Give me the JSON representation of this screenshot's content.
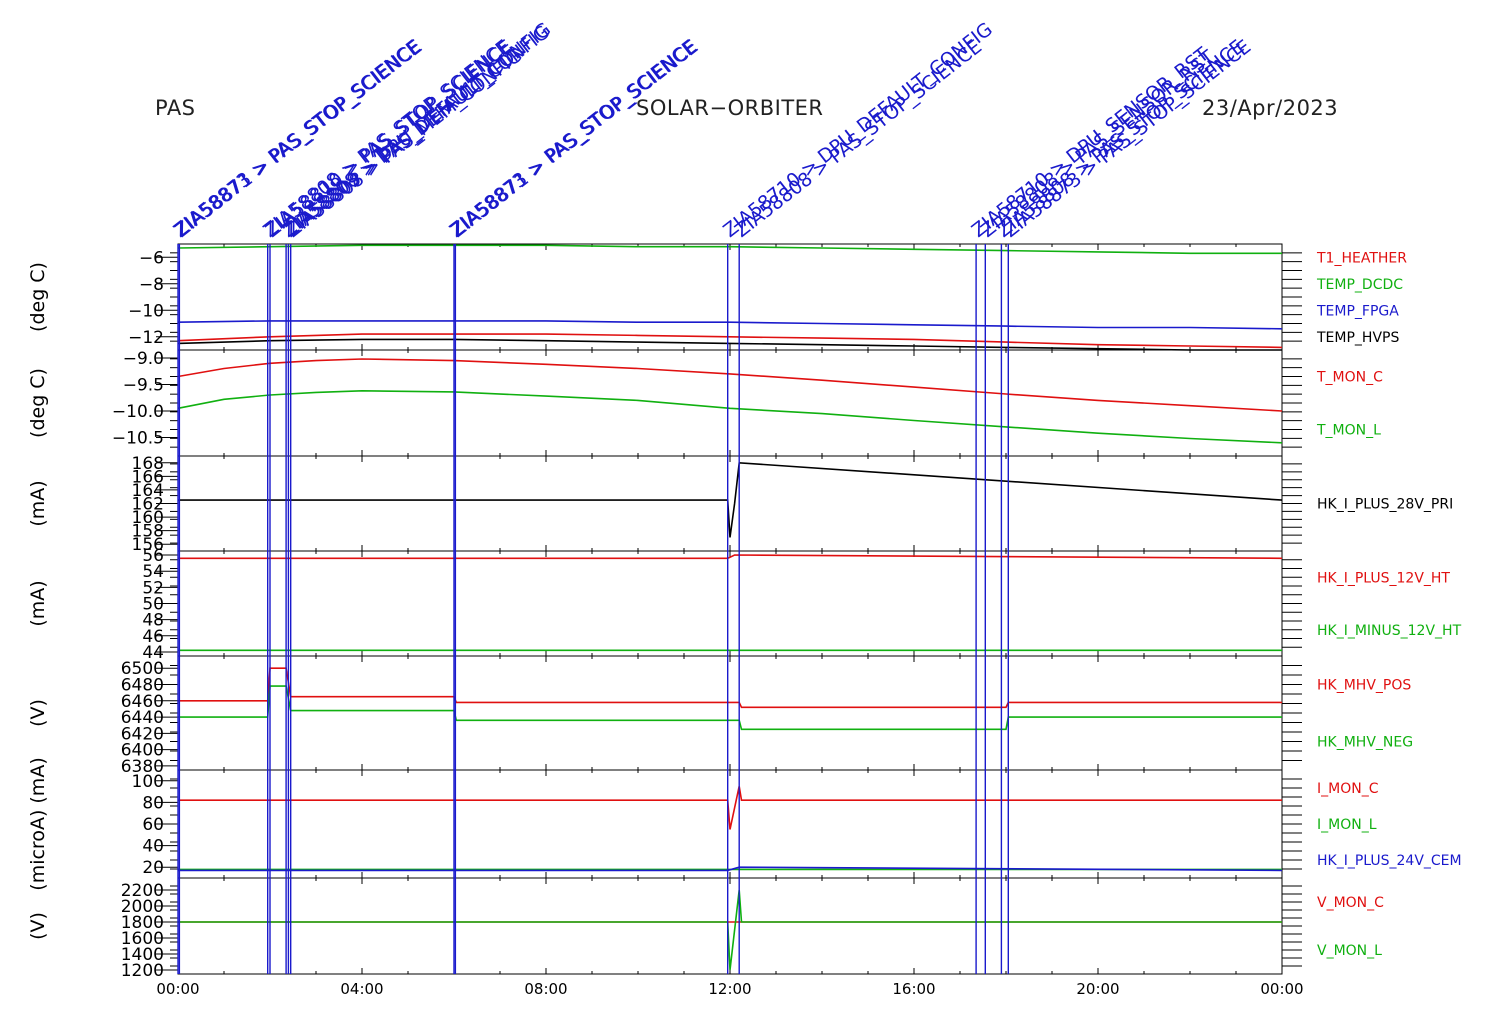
{
  "header": {
    "instrument": "PAS",
    "mission": "SOLAR−ORBITER",
    "date": "23/Apr/2023"
  },
  "x_ticks": [
    "00:00",
    "04:00",
    "08:00",
    "12:00",
    "16:00",
    "20:00",
    "00:00"
  ],
  "colors": {
    "red": "#e01010",
    "green": "#10b010",
    "blue": "#1a1acc",
    "black": "#000000",
    "event": "#1a1acc"
  },
  "events": [
    {
      "t": 0.0,
      "label": "ZIA58873 > PAS_STOP_SCIENCE"
    },
    {
      "t": 0.03,
      "label": "ZIA58871 > PAS_STOP_SCIENCE"
    },
    {
      "t": 1.95,
      "label": "ZIA58808 > PAS_STOP_SCIENCE"
    },
    {
      "t": 2.0,
      "label": "ZIA58810 > PAS_STOP_SCIENCE"
    },
    {
      "t": 2.35,
      "label": "ZIA58808 > DPU_DEFAULT_CONFIG"
    },
    {
      "t": 2.4,
      "label": "ZIA58809 > PAS_DEFAULT_CONFIG"
    },
    {
      "t": 2.45,
      "label": "ZIA58808 > PAS_MEM_CONFIG"
    },
    {
      "t": 6.0,
      "label": "ZIA58873 > PAS_STOP_SCIENCE"
    },
    {
      "t": 6.03,
      "label": "ZIA58871 > PAS_STOP_SCIENCE"
    },
    {
      "t": 11.95,
      "label": "ZIA58710 > DPU_DEFAULT_CONFIG"
    },
    {
      "t": 12.2,
      "label": "ZIA58808 > PAS_STOP_SCIENCE"
    },
    {
      "t": 17.35,
      "label": "ZIA58710 > DPU_SENSOR_RST"
    },
    {
      "t": 17.55,
      "label": "ZIA58808 > PAS_SENSOR_RST"
    },
    {
      "t": 17.9,
      "label": "ZIA58808 > PAS_STOP_SCIENCE"
    },
    {
      "t": 18.05,
      "label": "ZIA58873 > PAS_STOP_SCIENCE"
    }
  ],
  "chart_data": [
    {
      "type": "line",
      "ylabel": "(deg C)",
      "ylim": [
        -13,
        -5
      ],
      "yticks": [
        -6,
        -8,
        -10,
        -12
      ],
      "ytick_labels": [
        "−6",
        "−8",
        "−10",
        "−12"
      ],
      "series": [
        {
          "name": "T1_HEATHER",
          "color": "red",
          "x": [
            0,
            2,
            4,
            6,
            8,
            10,
            12,
            14,
            16,
            18,
            20,
            22,
            24
          ],
          "values": [
            -12.3,
            -12.0,
            -11.8,
            -11.8,
            -11.8,
            -11.9,
            -12.0,
            -12.1,
            -12.2,
            -12.4,
            -12.6,
            -12.7,
            -12.8
          ]
        },
        {
          "name": "TEMP_DCDC",
          "color": "green",
          "x": [
            0,
            2,
            4,
            6,
            8,
            10,
            12,
            14,
            16,
            18,
            20,
            22,
            24
          ],
          "values": [
            -5.3,
            -5.2,
            -5.1,
            -5.1,
            -5.1,
            -5.2,
            -5.2,
            -5.3,
            -5.4,
            -5.5,
            -5.6,
            -5.7,
            -5.7
          ]
        },
        {
          "name": "TEMP_FPGA",
          "color": "blue",
          "x": [
            0,
            2,
            4,
            6,
            8,
            10,
            12,
            14,
            16,
            18,
            20,
            22,
            24
          ],
          "values": [
            -10.9,
            -10.8,
            -10.8,
            -10.8,
            -10.8,
            -10.9,
            -10.9,
            -11.0,
            -11.1,
            -11.2,
            -11.3,
            -11.3,
            -11.4
          ]
        },
        {
          "name": "TEMP_HVPS",
          "color": "black",
          "x": [
            0,
            2,
            4,
            6,
            8,
            10,
            12,
            14,
            16,
            18,
            20,
            22,
            24
          ],
          "values": [
            -12.5,
            -12.3,
            -12.2,
            -12.2,
            -12.3,
            -12.4,
            -12.5,
            -12.6,
            -12.7,
            -12.8,
            -12.9,
            -13.0,
            -13.0
          ]
        }
      ]
    },
    {
      "type": "line",
      "ylabel": "(deg C)",
      "ylim": [
        -10.85,
        -8.85
      ],
      "yticks": [
        -9.0,
        -9.5,
        -10.0,
        -10.5
      ],
      "ytick_labels": [
        "−9.0",
        "−9.5",
        "−10.0",
        "−10.5"
      ],
      "series": [
        {
          "name": "T_MON_C",
          "color": "red",
          "x": [
            0,
            1,
            2,
            3,
            4,
            6,
            8,
            10,
            12,
            14,
            16,
            18,
            20,
            22,
            24
          ],
          "values": [
            -9.35,
            -9.2,
            -9.1,
            -9.05,
            -9.02,
            -9.05,
            -9.12,
            -9.2,
            -9.3,
            -9.42,
            -9.55,
            -9.68,
            -9.8,
            -9.9,
            -10.0
          ]
        },
        {
          "name": "T_MON_L",
          "color": "green",
          "x": [
            0,
            1,
            2,
            3,
            4,
            6,
            8,
            10,
            12,
            14,
            16,
            18,
            20,
            22,
            24
          ],
          "values": [
            -9.95,
            -9.78,
            -9.7,
            -9.65,
            -9.62,
            -9.64,
            -9.72,
            -9.8,
            -9.95,
            -10.05,
            -10.18,
            -10.3,
            -10.42,
            -10.52,
            -10.6
          ]
        }
      ]
    },
    {
      "type": "line",
      "ylabel": "(mA)",
      "ylim": [
        155,
        169
      ],
      "yticks": [
        156,
        158,
        160,
        162,
        164,
        166,
        168
      ],
      "ytick_labels": [
        "156",
        "158",
        "160",
        "162",
        "164",
        "166",
        "168"
      ],
      "series": [
        {
          "name": "HK_I_PLUS_28V_PRI",
          "color": "black",
          "x": [
            0,
            11.95,
            12.0,
            12.1,
            12.2,
            24
          ],
          "values": [
            162.5,
            162.5,
            157.0,
            162.0,
            168.0,
            162.5
          ]
        }
      ]
    },
    {
      "type": "line",
      "ylabel": "(mA)",
      "ylim": [
        43.5,
        56.5
      ],
      "yticks": [
        44,
        46,
        48,
        50,
        52,
        54,
        56
      ],
      "ytick_labels": [
        "44",
        "46",
        "48",
        "50",
        "52",
        "54",
        "56"
      ],
      "series": [
        {
          "name": "HK_I_PLUS_12V_HT",
          "color": "red",
          "x": [
            0,
            11.95,
            12.1,
            24
          ],
          "values": [
            55.6,
            55.6,
            56.0,
            55.6
          ]
        },
        {
          "name": "HK_I_MINUS_12V_HT",
          "color": "green",
          "x": [
            0,
            24
          ],
          "values": [
            44.2,
            44.2
          ]
        }
      ]
    },
    {
      "type": "line",
      "ylabel": "(V)",
      "ylim": [
        6375,
        6515
      ],
      "yticks": [
        6380,
        6400,
        6420,
        6440,
        6460,
        6480,
        6500
      ],
      "ytick_labels": [
        "6380",
        "6400",
        "6420",
        "6440",
        "6460",
        "6480",
        "6500"
      ],
      "series": [
        {
          "name": "HK_MHV_POS",
          "color": "red",
          "x": [
            0,
            1.95,
            2.0,
            2.35,
            2.45,
            6.0,
            6.05,
            12.2,
            12.25,
            18.0,
            18.05,
            24
          ],
          "values": [
            6460,
            6460,
            6500,
            6500,
            6465,
            6465,
            6458,
            6458,
            6452,
            6452,
            6458,
            6458
          ]
        },
        {
          "name": "HK_MHV_NEG",
          "color": "green",
          "x": [
            0,
            1.95,
            2.0,
            2.35,
            2.45,
            6.0,
            6.05,
            12.2,
            12.25,
            18.0,
            18.05,
            24
          ],
          "values": [
            6440,
            6440,
            6478,
            6478,
            6448,
            6448,
            6436,
            6436,
            6425,
            6425,
            6440,
            6440
          ]
        }
      ]
    },
    {
      "type": "line",
      "ylabel": "(microA) (mA)",
      "ylim": [
        10,
        110
      ],
      "yticks": [
        20,
        40,
        60,
        80,
        100
      ],
      "ytick_labels": [
        "20",
        "40",
        "60",
        "80",
        "100"
      ],
      "series": [
        {
          "name": "I_MON_C",
          "color": "red",
          "x": [
            0,
            11.95,
            12.0,
            12.2,
            12.25,
            24
          ],
          "values": [
            82,
            82,
            55,
            95,
            82,
            82
          ]
        },
        {
          "name": "I_MON_L",
          "color": "green",
          "x": [
            0,
            24
          ],
          "values": [
            18,
            18
          ]
        },
        {
          "name": "HK_I_PLUS_24V_CEM",
          "color": "blue",
          "x": [
            0,
            11.95,
            12.2,
            24
          ],
          "values": [
            17,
            17,
            20,
            17
          ]
        }
      ]
    },
    {
      "type": "line",
      "ylabel": "(V)",
      "ylim": [
        1150,
        2350
      ],
      "yticks": [
        1200,
        1400,
        1600,
        1800,
        2000,
        2200
      ],
      "ytick_labels": [
        "1200",
        "1400",
        "1600",
        "1800",
        "2000",
        "2200"
      ],
      "series": [
        {
          "name": "V_MON_C",
          "color": "red",
          "x": [
            0,
            24
          ],
          "values": [
            1800,
            1800
          ]
        },
        {
          "name": "V_MON_L",
          "color": "green",
          "x": [
            0,
            11.95,
            12.0,
            12.2,
            12.25,
            24
          ],
          "values": [
            1800,
            1800,
            1200,
            2200,
            1800,
            1800
          ]
        }
      ]
    }
  ]
}
